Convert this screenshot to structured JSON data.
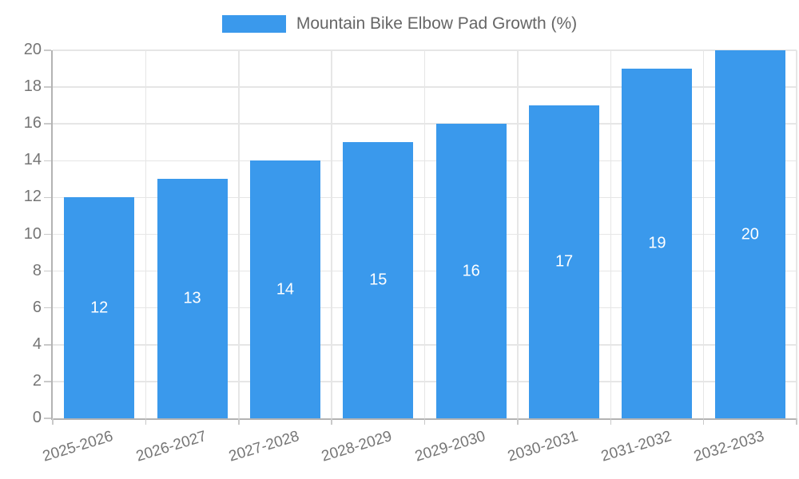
{
  "legend": {
    "label": "Mountain Bike Elbow Pad Growth (%)"
  },
  "colors": {
    "bar": "#3a99ec",
    "bar_label": "#ffffff",
    "grid": "#e6e6e6",
    "axis": "#b3b3b3",
    "tick": "#c9c9c9",
    "tick_text": "#757575",
    "legend_text": "#666666",
    "background": "#ffffff"
  },
  "chart_data": {
    "type": "bar",
    "title": "Mountain Bike Elbow Pad Growth (%)",
    "categories": [
      "2025-2026",
      "2026-2027",
      "2027-2028",
      "2028-2029",
      "2029-2030",
      "2030-2031",
      "2031-2032",
      "2032-2033"
    ],
    "values": [
      12,
      13,
      14,
      15,
      16,
      17,
      19,
      20
    ],
    "xlabel": "",
    "ylabel": "",
    "ylim": [
      0,
      20
    ],
    "ytick_step": 2,
    "ytick_labels": [
      "0",
      "2",
      "4",
      "6",
      "8",
      "10",
      "12",
      "14",
      "16",
      "18",
      "20"
    ],
    "grid": true,
    "legend_position": "top-center",
    "bar_value_labels": "inside-center",
    "x_label_rotation_deg": -17
  }
}
